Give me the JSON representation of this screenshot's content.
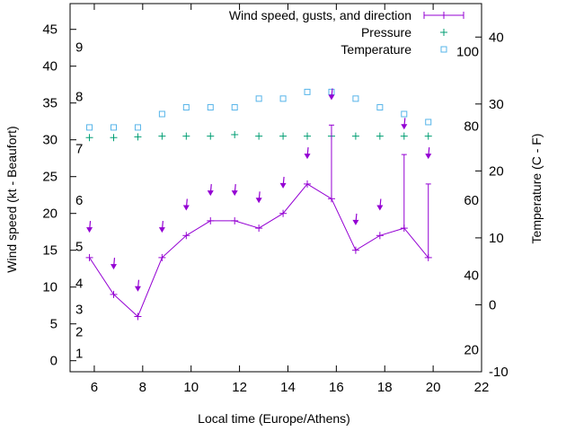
{
  "colors": {
    "wind": "#9400d3",
    "pressure": "#009e73",
    "temperature": "#56b4e9",
    "axis": "#000000"
  },
  "chart_data": {
    "type": "line",
    "xlabel": "Local time (Europe/Athens)",
    "ylabel": "Wind speed (kt - Beaufort)",
    "y2label": "Temperature (C - F)",
    "xlim": [
      5,
      22
    ],
    "ylim": [
      -1.5,
      48.5
    ],
    "y2lim": [
      -10,
      45
    ],
    "x_ticks": [
      6,
      8,
      10,
      12,
      14,
      16,
      18,
      20,
      22
    ],
    "y_ticks": [
      0,
      5,
      10,
      15,
      20,
      25,
      30,
      35,
      40,
      45
    ],
    "y2_ticks": [
      -10,
      0,
      10,
      20,
      30,
      40
    ],
    "beaufort_labels": [
      {
        "label": "1",
        "kt": 1
      },
      {
        "label": "2",
        "kt": 3.9
      },
      {
        "label": "3",
        "kt": 7
      },
      {
        "label": "4",
        "kt": 10.5
      },
      {
        "label": "5",
        "kt": 15.5
      },
      {
        "label": "6",
        "kt": 21.8
      },
      {
        "label": "7",
        "kt": 28.8
      },
      {
        "label": "8",
        "kt": 35.9
      },
      {
        "label": "9",
        "kt": 42.6
      }
    ],
    "fahrenheit_labels": [
      {
        "label": "20",
        "c": -6.7
      },
      {
        "label": "40",
        "c": 4.4
      },
      {
        "label": "60",
        "c": 15.6
      },
      {
        "label": "80",
        "c": 26.7
      },
      {
        "label": "100",
        "c": 37.8
      }
    ],
    "series": [
      {
        "name": "Wind speed, gusts, and direction",
        "x": [
          5.8,
          6.8,
          7.8,
          8.8,
          9.8,
          10.8,
          11.8,
          12.8,
          13.8,
          14.8,
          15.8,
          16.8,
          17.8,
          18.8,
          19.8
        ],
        "values": [
          14,
          9,
          6,
          14,
          17,
          19,
          19,
          18,
          20,
          24,
          22,
          15,
          17,
          18,
          14
        ],
        "gusts": [
          null,
          null,
          null,
          null,
          null,
          null,
          null,
          null,
          null,
          null,
          32,
          null,
          null,
          28,
          24
        ],
        "direction_y": [
          18,
          13,
          10,
          18,
          21,
          23,
          23,
          22,
          24,
          28,
          36,
          19,
          21,
          32,
          28
        ]
      },
      {
        "name": "Pressure",
        "x": [
          5.8,
          6.8,
          7.8,
          8.8,
          9.8,
          10.8,
          11.8,
          12.8,
          13.8,
          14.8,
          15.8,
          16.8,
          17.8,
          18.8,
          19.8
        ],
        "values": [
          30.3,
          30.3,
          30.4,
          30.5,
          30.5,
          30.5,
          30.7,
          30.5,
          30.5,
          30.5,
          30.5,
          30.5,
          30.5,
          30.5,
          30.5
        ]
      },
      {
        "name": "Temperature",
        "x": [
          5.8,
          6.8,
          7.8,
          8.8,
          9.8,
          10.8,
          11.8,
          12.8,
          13.8,
          14.8,
          15.8,
          16.8,
          17.8,
          18.8,
          19.8
        ],
        "values": [
          26.5,
          26.5,
          26.5,
          28.5,
          29.5,
          29.5,
          29.5,
          30.8,
          30.8,
          31.8,
          31.8,
          30.8,
          29.5,
          28.5,
          27.3
        ]
      }
    ],
    "legend_position": "top-right"
  }
}
